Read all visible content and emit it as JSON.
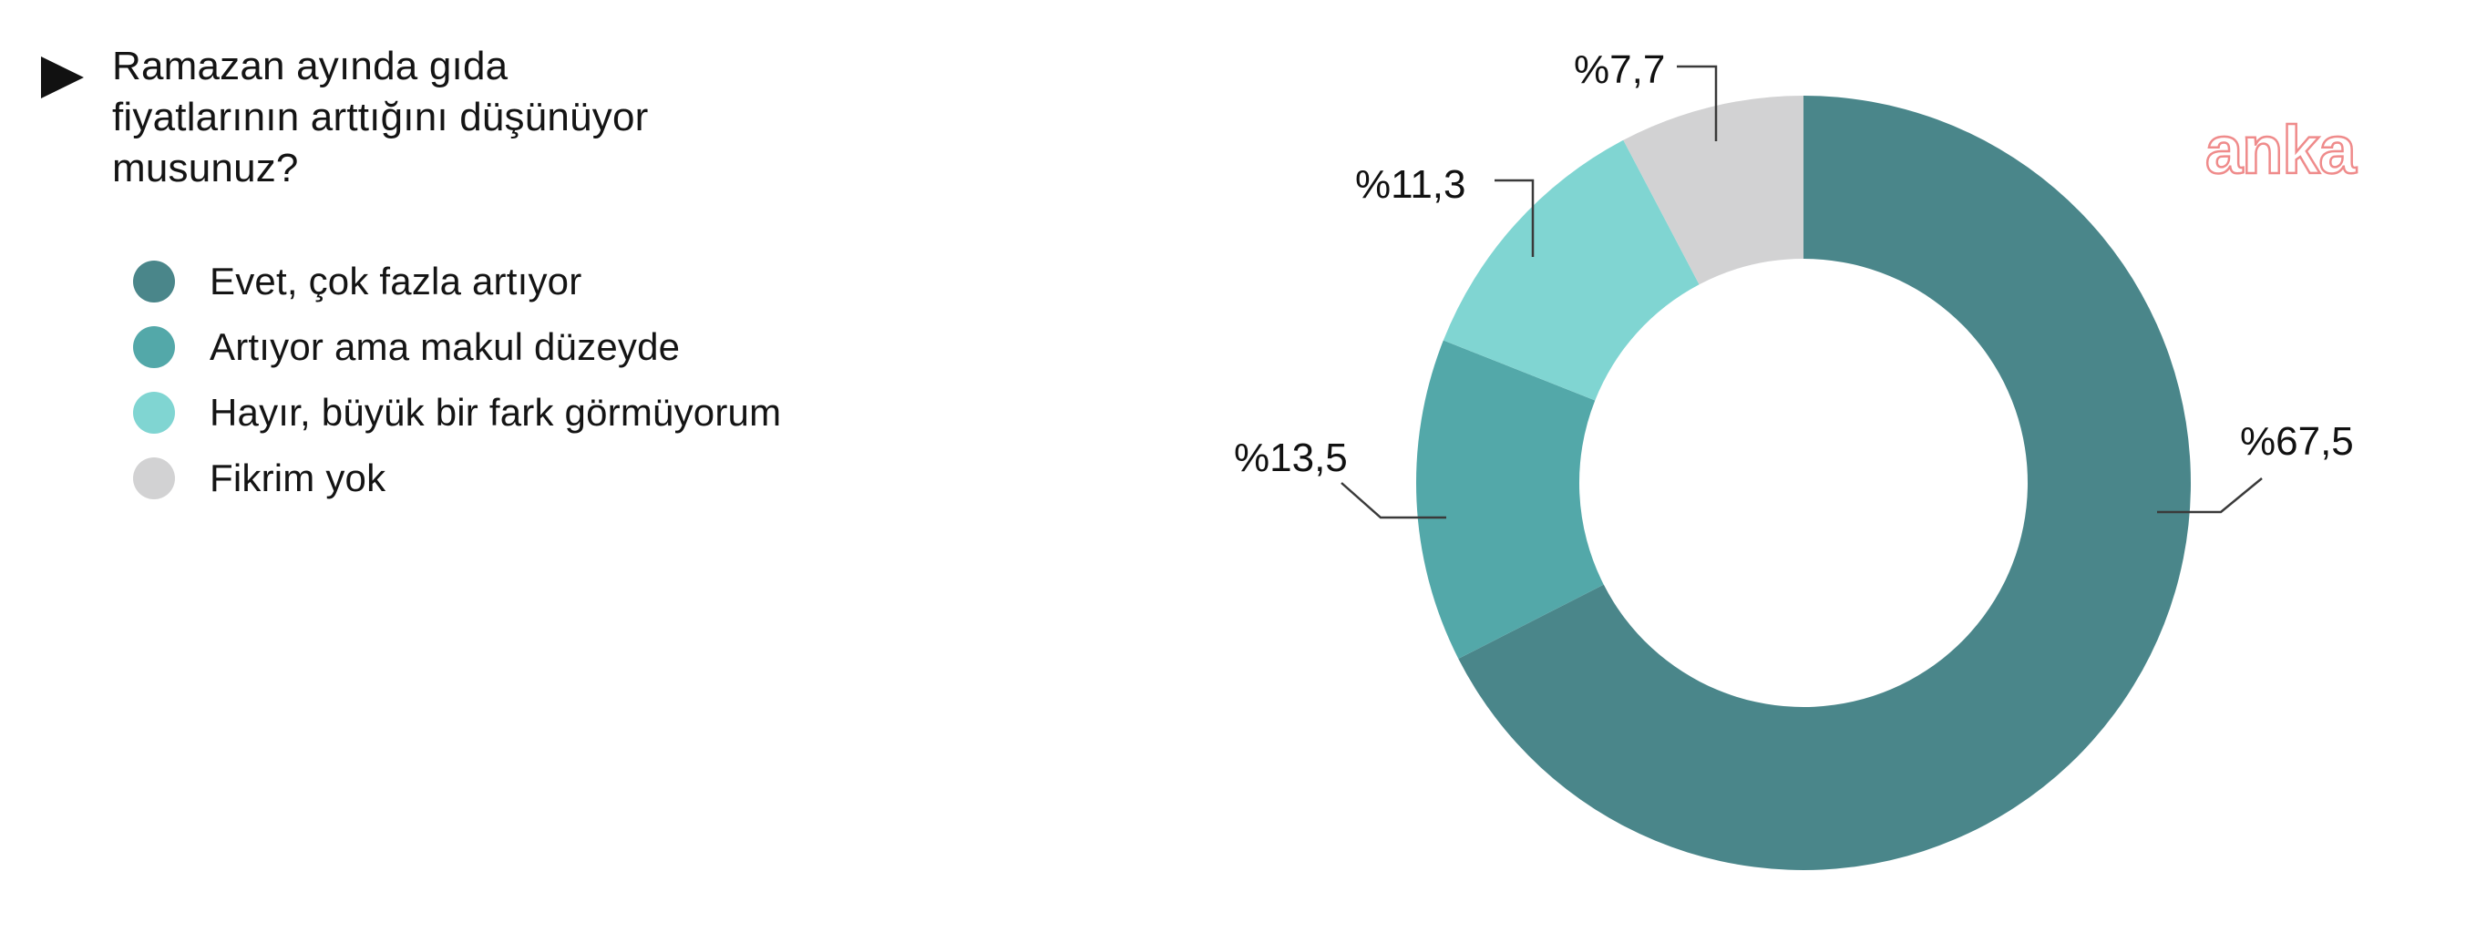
{
  "question": {
    "text": "Ramazan ayında gıda\nfiyatlarının arttığını düşünüyor\nmusunuz?"
  },
  "chart_data": {
    "type": "pie",
    "subtype": "donut",
    "title": "Ramazan ayında gıda fiyatlarının arttığını düşünüyor musunuz?",
    "unit": "percent",
    "total": 100,
    "start_angle_deg": 0,
    "direction": "clockwise",
    "inner_radius_ratio": 0.58,
    "legend_position": "left",
    "slices": [
      {
        "label": "Evet, çok fazla artıyor",
        "value": 67.5,
        "display": "%67,5",
        "color": "#4a868a"
      },
      {
        "label": "Artıyor ama makul düzeyde",
        "value": 13.5,
        "display": "%13,5",
        "color": "#53a8a9"
      },
      {
        "label": "Hayır, büyük bir fark görmüyorum",
        "value": 11.3,
        "display": "%11,3",
        "color": "#80d5d2"
      },
      {
        "label": "Fikrim yok",
        "value": 7.7,
        "display": "%7,7",
        "color": "#d2d2d3"
      }
    ],
    "callout_line_color": "#3a3a3a"
  },
  "watermark": {
    "text": "anka",
    "color": "#ef8b8b"
  }
}
